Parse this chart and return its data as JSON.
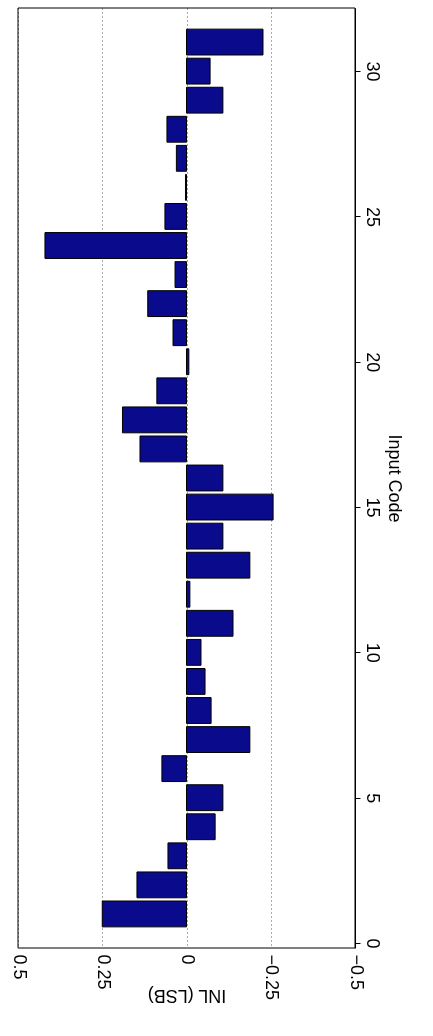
{
  "chart_data": {
    "type": "bar",
    "orientation": "horizontal",
    "xlabel": "INL (LSB)",
    "ylabel": "Input Code",
    "x": [
      1,
      2,
      3,
      4,
      5,
      6,
      7,
      8,
      9,
      10,
      11,
      12,
      13,
      14,
      15,
      16,
      17,
      18,
      19,
      20,
      21,
      22,
      23,
      24,
      25,
      26,
      27,
      28,
      29,
      30,
      31
    ],
    "values": [
      0.25,
      0.147,
      0.055,
      -0.085,
      -0.108,
      0.073,
      -0.188,
      -0.073,
      -0.055,
      -0.043,
      -0.138,
      -0.01,
      -0.188,
      -0.108,
      -0.257,
      -0.108,
      0.138,
      0.19,
      0.088,
      -0.007,
      0.04,
      0.115,
      0.034,
      0.42,
      0.064,
      0.003,
      0.03,
      0.058,
      -0.108,
      -0.07,
      -0.227
    ],
    "color": "#0a0a8c",
    "xlim": [
      0.5,
      -0.5
    ],
    "xticks": [
      0.5,
      {
        "value": 0.25,
        "label": "0.25"
      },
      0,
      {
        "value": -0.25,
        "label": "−0.25"
      },
      {
        "value": -0.5,
        "label": "−0.5"
      }
    ],
    "ylim": [
      0,
      32
    ],
    "yticks": [
      0,
      5,
      10,
      15,
      20,
      25,
      30
    ],
    "grid": "x"
  }
}
